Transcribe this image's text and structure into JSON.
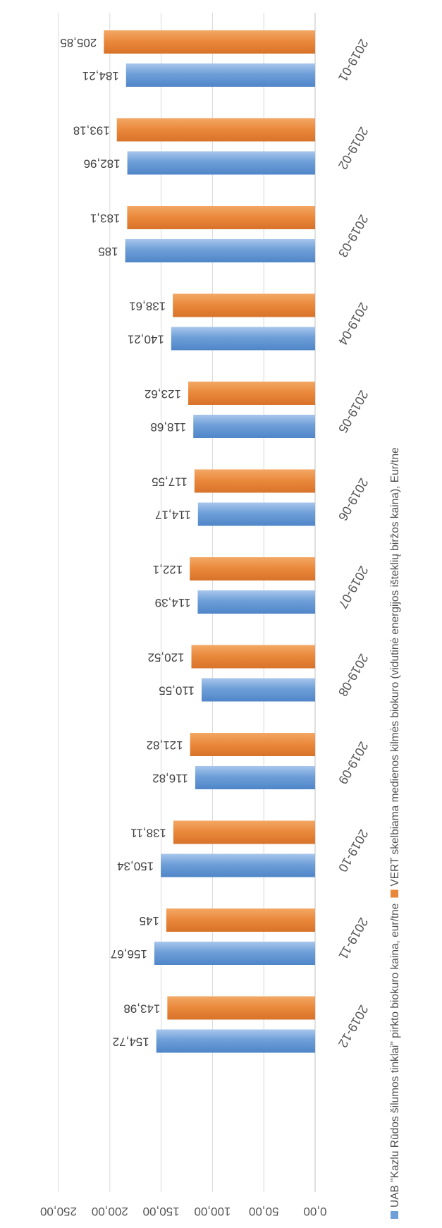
{
  "chart_data": {
    "type": "bar",
    "categories": [
      "2019-01",
      "2019-02",
      "2019-03",
      "2019-04",
      "2019-05",
      "2019-06",
      "2019-07",
      "2019-08",
      "2019-09",
      "2019-10",
      "2019-11",
      "2019-12"
    ],
    "series": [
      {
        "name": "UAB \"Kazlu Rūdos šilumos tinklai\" pirkto biokuro kaina, eur/tne",
        "color": "#6e9fd8",
        "values": [
          184.21,
          182.96,
          185,
          140.21,
          118.68,
          114.17,
          114.39,
          110.55,
          116.82,
          150.34,
          156.67,
          154.72
        ],
        "labels": [
          "184,21",
          "182,96",
          "185",
          "140,21",
          "118,68",
          "114,17",
          "114,39",
          "110,55",
          "116,82",
          "150,34",
          "156,67",
          "154,72"
        ]
      },
      {
        "name": "VERT skelbiama medienos kilmės biokuro (vidutinė energijos išteklių biržos kaina), Eur/tne",
        "color": "#e9873a",
        "values": [
          205.85,
          193.18,
          183.1,
          138.61,
          123.62,
          117.55,
          122.1,
          120.52,
          121.82,
          138.11,
          145,
          143.98
        ],
        "labels": [
          "205,85",
          "193,18",
          "183,1",
          "138,61",
          "123,62",
          "117,55",
          "122,1",
          "120,52",
          "121,82",
          "138,11",
          "145",
          "143,98"
        ]
      }
    ],
    "y_ticks": [
      "0,00",
      "50,00",
      "100,00",
      "150,00",
      "200,00",
      "250,00"
    ],
    "ylim": [
      0,
      250
    ],
    "grid": true,
    "legend": "bottom",
    "title": "",
    "xlabel": "",
    "ylabel": ""
  }
}
